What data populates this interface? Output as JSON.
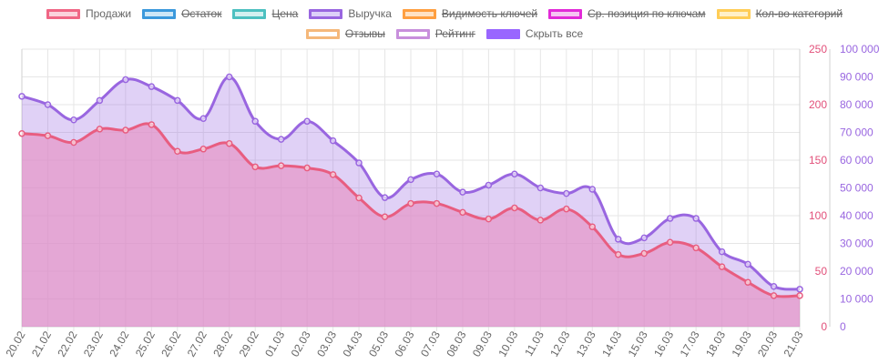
{
  "legend": [
    {
      "label": "Продажи",
      "hidden": false,
      "stroke": "#f06685",
      "fill": "#fbd2dc"
    },
    {
      "label": "Остаток",
      "hidden": true,
      "stroke": "#3b99dc",
      "fill": "#cde7f7"
    },
    {
      "label": "Цена",
      "hidden": true,
      "stroke": "#4cc0c0",
      "fill": "#d2f0f0"
    },
    {
      "label": "Выручка",
      "hidden": false,
      "stroke": "#9966e0",
      "fill": "#ddd0f8"
    },
    {
      "label": "Видимость ключей",
      "hidden": true,
      "stroke": "#ff9f40",
      "fill": "#ffe2c4"
    },
    {
      "label": "Ср. позиция по ключам",
      "hidden": true,
      "stroke": "#e22ad8",
      "fill": "#f6c4f2"
    },
    {
      "label": "Кол-во категорий",
      "hidden": true,
      "stroke": "#ffcd56",
      "fill": "#fff0c8"
    },
    {
      "label": "Отзывы",
      "hidden": true,
      "stroke": "#f5b87a",
      "fill": "#ffffff"
    },
    {
      "label": "Рейтинг",
      "hidden": true,
      "stroke": "#c88fdc",
      "fill": "#ffffff"
    },
    {
      "label": "Скрыть все",
      "hidden": false,
      "stroke": "#9966ff",
      "fill": "#9966ff"
    }
  ],
  "chart_data": {
    "type": "area",
    "categories": [
      "20.02",
      "21.02",
      "22.02",
      "23.02",
      "24.02",
      "25.02",
      "26.02",
      "27.02",
      "28.02",
      "29.02",
      "01.03",
      "02.03",
      "03.03",
      "04.03",
      "05.03",
      "06.03",
      "07.03",
      "08.03",
      "09.03",
      "10.03",
      "11.03",
      "12.03",
      "13.03",
      "14.03",
      "15.03",
      "16.03",
      "17.03",
      "18.03",
      "19.03",
      "20.03",
      "21.03"
    ],
    "y_left": {
      "min": 0,
      "max": 250,
      "ticks": [
        0,
        50,
        100,
        150,
        200,
        250
      ],
      "color": "#e2507a"
    },
    "y_right": {
      "min": 0,
      "max": 100000,
      "ticks": [
        "0",
        "10 000",
        "20 000",
        "30 000",
        "40 000",
        "50 000",
        "60 000",
        "70 000",
        "80 000",
        "90 000",
        "100 000"
      ],
      "color": "#9966e0"
    },
    "series": [
      {
        "name": "Выручка",
        "axis": "right",
        "color": "#9966e0",
        "fill": "rgba(153,102,224,0.30)",
        "values": [
          83000,
          80000,
          74500,
          81500,
          89000,
          86500,
          81500,
          75000,
          90000,
          74000,
          67500,
          74000,
          67000,
          59000,
          46500,
          53000,
          55000,
          48500,
          51000,
          55000,
          50000,
          48000,
          49500,
          31500,
          32000,
          39000,
          39000,
          27000,
          22500,
          14500,
          13500
        ]
      },
      {
        "name": "Продажи",
        "axis": "left",
        "color": "#e85d80",
        "fill": "rgba(231,145,195,0.65)",
        "values": [
          174,
          172,
          166,
          178,
          177,
          182,
          158,
          160,
          165,
          144,
          145,
          143,
          137,
          116,
          99,
          111,
          111,
          103,
          97,
          107,
          96,
          106,
          90,
          65,
          66,
          76,
          71,
          54,
          40,
          28,
          28
        ]
      }
    ]
  }
}
